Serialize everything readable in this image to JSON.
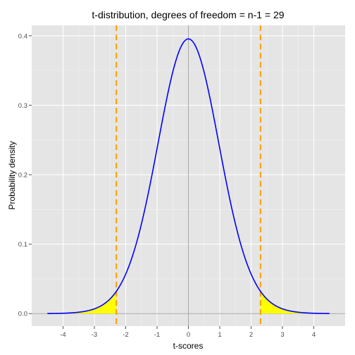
{
  "chart_data": {
    "type": "line",
    "title": "t-distribution, degrees of freedom = n-1 = 29",
    "xlabel": "t-scores",
    "ylabel": "Probability density",
    "xlim": [
      -5.0,
      5.0
    ],
    "ylim": [
      -0.018,
      0.415
    ],
    "x_ticks": [
      -4,
      -3,
      -2,
      -1,
      0,
      1,
      2,
      3,
      4
    ],
    "x_tick_labels": [
      "-4",
      "-3",
      "-2",
      "-1",
      "0",
      "1",
      "2",
      "3",
      "4"
    ],
    "y_ticks": [
      0.0,
      0.1,
      0.2,
      0.3,
      0.4
    ],
    "y_tick_labels": [
      "0.0",
      "0.1",
      "0.2",
      "0.3",
      "0.4"
    ],
    "grid": true,
    "series": [
      {
        "color": "#0000ff",
        "degrees_of_freedom": 29,
        "x": [
          -4.5,
          -4.25,
          -4.0,
          -3.75,
          -3.5,
          -3.25,
          -3.0,
          -2.75,
          -2.5,
          -2.25,
          -2.0,
          -1.75,
          -1.5,
          -1.25,
          -1.0,
          -0.75,
          -0.5,
          -0.25,
          0.0,
          0.25,
          0.5,
          0.75,
          1.0,
          1.25,
          1.5,
          1.75,
          2.0,
          2.25,
          2.5,
          2.75,
          3.0,
          3.25,
          3.5,
          3.75,
          4.0,
          4.25,
          4.5
        ],
        "y": [
          0.0003,
          0.0006,
          0.0011,
          0.0019,
          0.0033,
          0.0055,
          0.0089,
          0.0139,
          0.0211,
          0.0309,
          0.0539,
          0.0878,
          0.1301,
          0.1812,
          0.2393,
          0.2989,
          0.3497,
          0.3826,
          0.3955,
          0.3826,
          0.3497,
          0.2989,
          0.2393,
          0.1812,
          0.1301,
          0.0878,
          0.0539,
          0.0309,
          0.0211,
          0.0139,
          0.0089,
          0.0055,
          0.0033,
          0.0019,
          0.0011,
          0.0006,
          0.0003
        ]
      }
    ],
    "critical_values": [
      -2.3,
      2.3
    ],
    "critical_line_color": "#ffa500",
    "shaded_tail_color": "#ffff00",
    "zero_line_color": "#a6a6a6",
    "panel_background": "#e5e5e5",
    "grid_color": "#ffffff"
  }
}
